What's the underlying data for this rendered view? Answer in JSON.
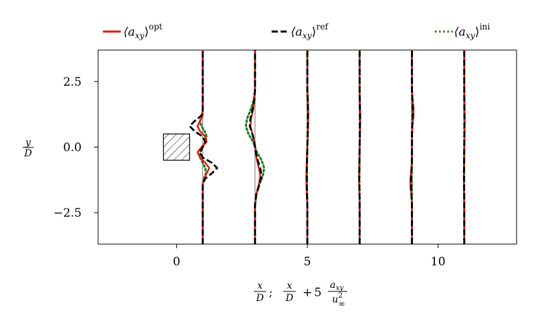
{
  "chart_data": {
    "type": "line",
    "title": "",
    "xlabel": {
      "first": {
        "num": "x",
        "den": "D"
      },
      "sep": ";",
      "second": {
        "num": "x",
        "den": "D",
        "plus": "+",
        "coef": "5",
        "frac_num": "a",
        "frac_num_sub": "xy",
        "frac_den": "u",
        "frac_den_sup": "2",
        "frac_den_sub": "∞"
      }
    },
    "ylabel": {
      "num": "y",
      "den": "D"
    },
    "xlim": [
      -3,
      13
    ],
    "ylim": [
      -3.7,
      3.7
    ],
    "xticks": [
      0,
      5,
      10
    ],
    "xtick_labels": [
      "0",
      "5",
      "10"
    ],
    "yticks": [
      2.5,
      0.0,
      -2.5
    ],
    "ytick_labels": [
      "2.5",
      "0.0",
      "−2.5"
    ],
    "grid": false,
    "legend_position": "top",
    "colors": {
      "opt": "#e8150e",
      "ref": "#000000",
      "ini": "#1a7f1a",
      "baseline": "#888888"
    },
    "obstacle": {
      "shape": "square",
      "x_range": [
        -0.5,
        0.5
      ],
      "y_range": [
        -0.5,
        0.5
      ],
      "hatched": true
    },
    "stations_x": [
      1,
      3,
      5,
      7,
      9,
      11
    ],
    "profile_scale": 5,
    "series": [
      {
        "name_parts": {
          "main": "⟨a",
          "sub": "xy",
          "close": "⟩",
          "sup": "opt"
        },
        "key": "opt",
        "style": "solid",
        "profiles": [
          {
            "station": 1,
            "points": [
              [
                -3.7,
                0
              ],
              [
                -1.4,
                0
              ],
              [
                -1.2,
                0.01
              ],
              [
                -1.0,
                0.03
              ],
              [
                -0.8,
                0.05
              ],
              [
                -0.6,
                0.02
              ],
              [
                -0.4,
                -0.02
              ],
              [
                -0.2,
                -0.04
              ],
              [
                0.0,
                -0.01
              ],
              [
                0.2,
                0.03
              ],
              [
                0.4,
                0.02
              ],
              [
                0.6,
                -0.02
              ],
              [
                0.8,
                -0.04
              ],
              [
                1.0,
                -0.02
              ],
              [
                1.2,
                0.0
              ],
              [
                3.7,
                0
              ]
            ]
          },
          {
            "station": 3,
            "points": [
              [
                -3.7,
                0
              ],
              [
                -2.2,
                0
              ],
              [
                -1.8,
                0.01
              ],
              [
                -1.4,
                0.03
              ],
              [
                -1.1,
                0.04
              ],
              [
                -0.8,
                0.03
              ],
              [
                -0.5,
                0.015
              ],
              [
                -0.2,
                0.005
              ],
              [
                0.0,
                0
              ],
              [
                0.2,
                -0.005
              ],
              [
                0.5,
                -0.02
              ],
              [
                0.8,
                -0.035
              ],
              [
                1.1,
                -0.03
              ],
              [
                1.4,
                -0.015
              ],
              [
                1.8,
                -0.005
              ],
              [
                2.2,
                0
              ],
              [
                3.7,
                0
              ]
            ]
          },
          {
            "station": 5,
            "points": [
              [
                -3.7,
                0
              ],
              [
                -2.2,
                0
              ],
              [
                -1.8,
                -0.005
              ],
              [
                -1.2,
                -0.008
              ],
              [
                -0.6,
                -0.005
              ],
              [
                0.0,
                0
              ],
              [
                0.6,
                0.005
              ],
              [
                1.2,
                0.008
              ],
              [
                1.8,
                0.005
              ],
              [
                2.2,
                0
              ],
              [
                3.7,
                0
              ]
            ]
          },
          {
            "station": 7,
            "points": [
              [
                -3.7,
                0
              ],
              [
                -2.0,
                0
              ],
              [
                -1.5,
                -0.004
              ],
              [
                -1.0,
                -0.005
              ],
              [
                -0.5,
                -0.003
              ],
              [
                0.0,
                0
              ],
              [
                0.5,
                0.003
              ],
              [
                1.0,
                0.005
              ],
              [
                1.5,
                0.004
              ],
              [
                2.0,
                0
              ],
              [
                3.7,
                0
              ]
            ]
          },
          {
            "station": 9,
            "points": [
              [
                -3.7,
                0
              ],
              [
                -2.2,
                0
              ],
              [
                -1.8,
                -0.005
              ],
              [
                -1.5,
                -0.012
              ],
              [
                -1.2,
                -0.012
              ],
              [
                -0.9,
                -0.006
              ],
              [
                -0.5,
                0
              ],
              [
                0.5,
                0
              ],
              [
                0.9,
                0.006
              ],
              [
                1.2,
                0.012
              ],
              [
                1.5,
                0.012
              ],
              [
                1.8,
                0.005
              ],
              [
                2.2,
                0
              ],
              [
                3.7,
                0
              ]
            ]
          },
          {
            "station": 11,
            "points": [
              [
                -3.7,
                0
              ],
              [
                -2.5,
                0
              ],
              [
                -1.5,
                -0.003
              ],
              [
                -1.0,
                -0.004
              ],
              [
                -0.5,
                -0.002
              ],
              [
                0.0,
                0
              ],
              [
                0.5,
                0.002
              ],
              [
                1.0,
                0.004
              ],
              [
                1.5,
                0.003
              ],
              [
                2.5,
                0
              ],
              [
                3.7,
                0
              ]
            ]
          }
        ]
      },
      {
        "name_parts": {
          "main": "⟨a",
          "sub": "xy",
          "close": "⟩",
          "sup": "ref"
        },
        "key": "ref",
        "style": "dashed",
        "profiles": [
          {
            "station": 1,
            "points": [
              [
                -3.7,
                0
              ],
              [
                -1.4,
                0
              ],
              [
                -1.2,
                0.02
              ],
              [
                -1.0,
                0.07
              ],
              [
                -0.8,
                0.11
              ],
              [
                -0.6,
                0.07
              ],
              [
                -0.4,
                0.0
              ],
              [
                -0.2,
                -0.02
              ],
              [
                0.0,
                0
              ],
              [
                0.2,
                0.02
              ],
              [
                0.4,
                0.0
              ],
              [
                0.6,
                -0.06
              ],
              [
                0.8,
                -0.1
              ],
              [
                1.0,
                -0.06
              ],
              [
                1.2,
                -0.01
              ],
              [
                1.4,
                0
              ],
              [
                3.7,
                0
              ]
            ]
          },
          {
            "station": 3,
            "points": [
              [
                -3.7,
                0
              ],
              [
                -2.2,
                0
              ],
              [
                -1.8,
                0.01
              ],
              [
                -1.4,
                0.035
              ],
              [
                -1.1,
                0.05
              ],
              [
                -0.8,
                0.04
              ],
              [
                -0.5,
                0.02
              ],
              [
                -0.2,
                0.005
              ],
              [
                0.0,
                0
              ],
              [
                0.2,
                -0.005
              ],
              [
                0.5,
                -0.02
              ],
              [
                0.8,
                -0.04
              ],
              [
                1.1,
                -0.035
              ],
              [
                1.4,
                -0.02
              ],
              [
                1.8,
                -0.005
              ],
              [
                2.2,
                0
              ],
              [
                3.7,
                0
              ]
            ]
          },
          {
            "station": 5,
            "points": [
              [
                -3.7,
                0
              ],
              [
                -2.2,
                0
              ],
              [
                -1.5,
                -0.004
              ],
              [
                -0.8,
                -0.004
              ],
              [
                0.0,
                0
              ],
              [
                0.8,
                0.004
              ],
              [
                1.5,
                0.004
              ],
              [
                2.2,
                0
              ],
              [
                3.7,
                0
              ]
            ]
          },
          {
            "station": 7,
            "points": [
              [
                -3.7,
                0
              ],
              [
                -2.0,
                0
              ],
              [
                -1.2,
                -0.003
              ],
              [
                0.0,
                0
              ],
              [
                1.2,
                0.003
              ],
              [
                2.0,
                0
              ],
              [
                3.7,
                0
              ]
            ]
          },
          {
            "station": 9,
            "points": [
              [
                -3.7,
                0
              ],
              [
                -2.2,
                0
              ],
              [
                -1.6,
                -0.006
              ],
              [
                -1.2,
                -0.006
              ],
              [
                -0.6,
                0
              ],
              [
                0.6,
                0
              ],
              [
                1.2,
                0.006
              ],
              [
                1.6,
                0.006
              ],
              [
                2.2,
                0
              ],
              [
                3.7,
                0
              ]
            ]
          },
          {
            "station": 11,
            "points": [
              [
                -3.7,
                0
              ],
              [
                -2.0,
                0
              ],
              [
                -1.0,
                -0.002
              ],
              [
                0.0,
                0
              ],
              [
                1.0,
                0.002
              ],
              [
                2.0,
                0
              ],
              [
                3.7,
                0
              ]
            ]
          }
        ]
      },
      {
        "name_parts": {
          "main": "⟨a",
          "sub": "xy",
          "close": "⟩",
          "sup": "ini"
        },
        "key": "ini",
        "style": "dotted",
        "profiles": [
          {
            "station": 1,
            "points": [
              [
                -3.7,
                0
              ],
              [
                -1.4,
                0
              ],
              [
                -1.2,
                0.01
              ],
              [
                -1.0,
                0.025
              ],
              [
                -0.8,
                0.02
              ],
              [
                -0.6,
                0.0
              ],
              [
                -0.4,
                -0.02
              ],
              [
                -0.2,
                -0.02
              ],
              [
                0.0,
                0
              ],
              [
                0.2,
                0.02
              ],
              [
                0.4,
                0.03
              ],
              [
                0.6,
                0.015
              ],
              [
                0.8,
                -0.01
              ],
              [
                1.0,
                -0.02
              ],
              [
                1.2,
                -0.005
              ],
              [
                1.4,
                0
              ],
              [
                3.7,
                0
              ]
            ]
          },
          {
            "station": 3,
            "points": [
              [
                -3.7,
                0
              ],
              [
                -2.2,
                0
              ],
              [
                -1.8,
                0.01
              ],
              [
                -1.4,
                0.035
              ],
              [
                -1.1,
                0.06
              ],
              [
                -0.8,
                0.07
              ],
              [
                -0.5,
                0.05
              ],
              [
                -0.2,
                0.015
              ],
              [
                0.0,
                0
              ],
              [
                0.2,
                -0.015
              ],
              [
                0.5,
                -0.05
              ],
              [
                0.8,
                -0.07
              ],
              [
                1.1,
                -0.06
              ],
              [
                1.4,
                -0.035
              ],
              [
                1.8,
                -0.01
              ],
              [
                2.2,
                0
              ],
              [
                3.7,
                0
              ]
            ]
          },
          {
            "station": 5,
            "points": [
              [
                -3.7,
                0
              ],
              [
                -2.2,
                0
              ],
              [
                -1.5,
                -0.003
              ],
              [
                -0.8,
                -0.003
              ],
              [
                0.0,
                0
              ],
              [
                0.8,
                0.003
              ],
              [
                1.5,
                0.003
              ],
              [
                2.2,
                0
              ],
              [
                3.7,
                0
              ]
            ]
          },
          {
            "station": 7,
            "points": [
              [
                -3.7,
                0
              ],
              [
                -2.0,
                0
              ],
              [
                -1.2,
                -0.002
              ],
              [
                0.0,
                0
              ],
              [
                1.2,
                0.002
              ],
              [
                2.0,
                0
              ],
              [
                3.7,
                0
              ]
            ]
          },
          {
            "station": 9,
            "points": [
              [
                -3.7,
                0
              ],
              [
                -2.2,
                0
              ],
              [
                -1.2,
                -0.002
              ],
              [
                0.0,
                0
              ],
              [
                1.2,
                0.002
              ],
              [
                2.2,
                0
              ],
              [
                3.7,
                0
              ]
            ]
          },
          {
            "station": 11,
            "points": [
              [
                -3.7,
                0
              ],
              [
                -2.0,
                0
              ],
              [
                -1.0,
                -0.001
              ],
              [
                0.0,
                0
              ],
              [
                1.0,
                0.001
              ],
              [
                2.0,
                0
              ],
              [
                3.7,
                0
              ]
            ]
          }
        ]
      }
    ]
  }
}
